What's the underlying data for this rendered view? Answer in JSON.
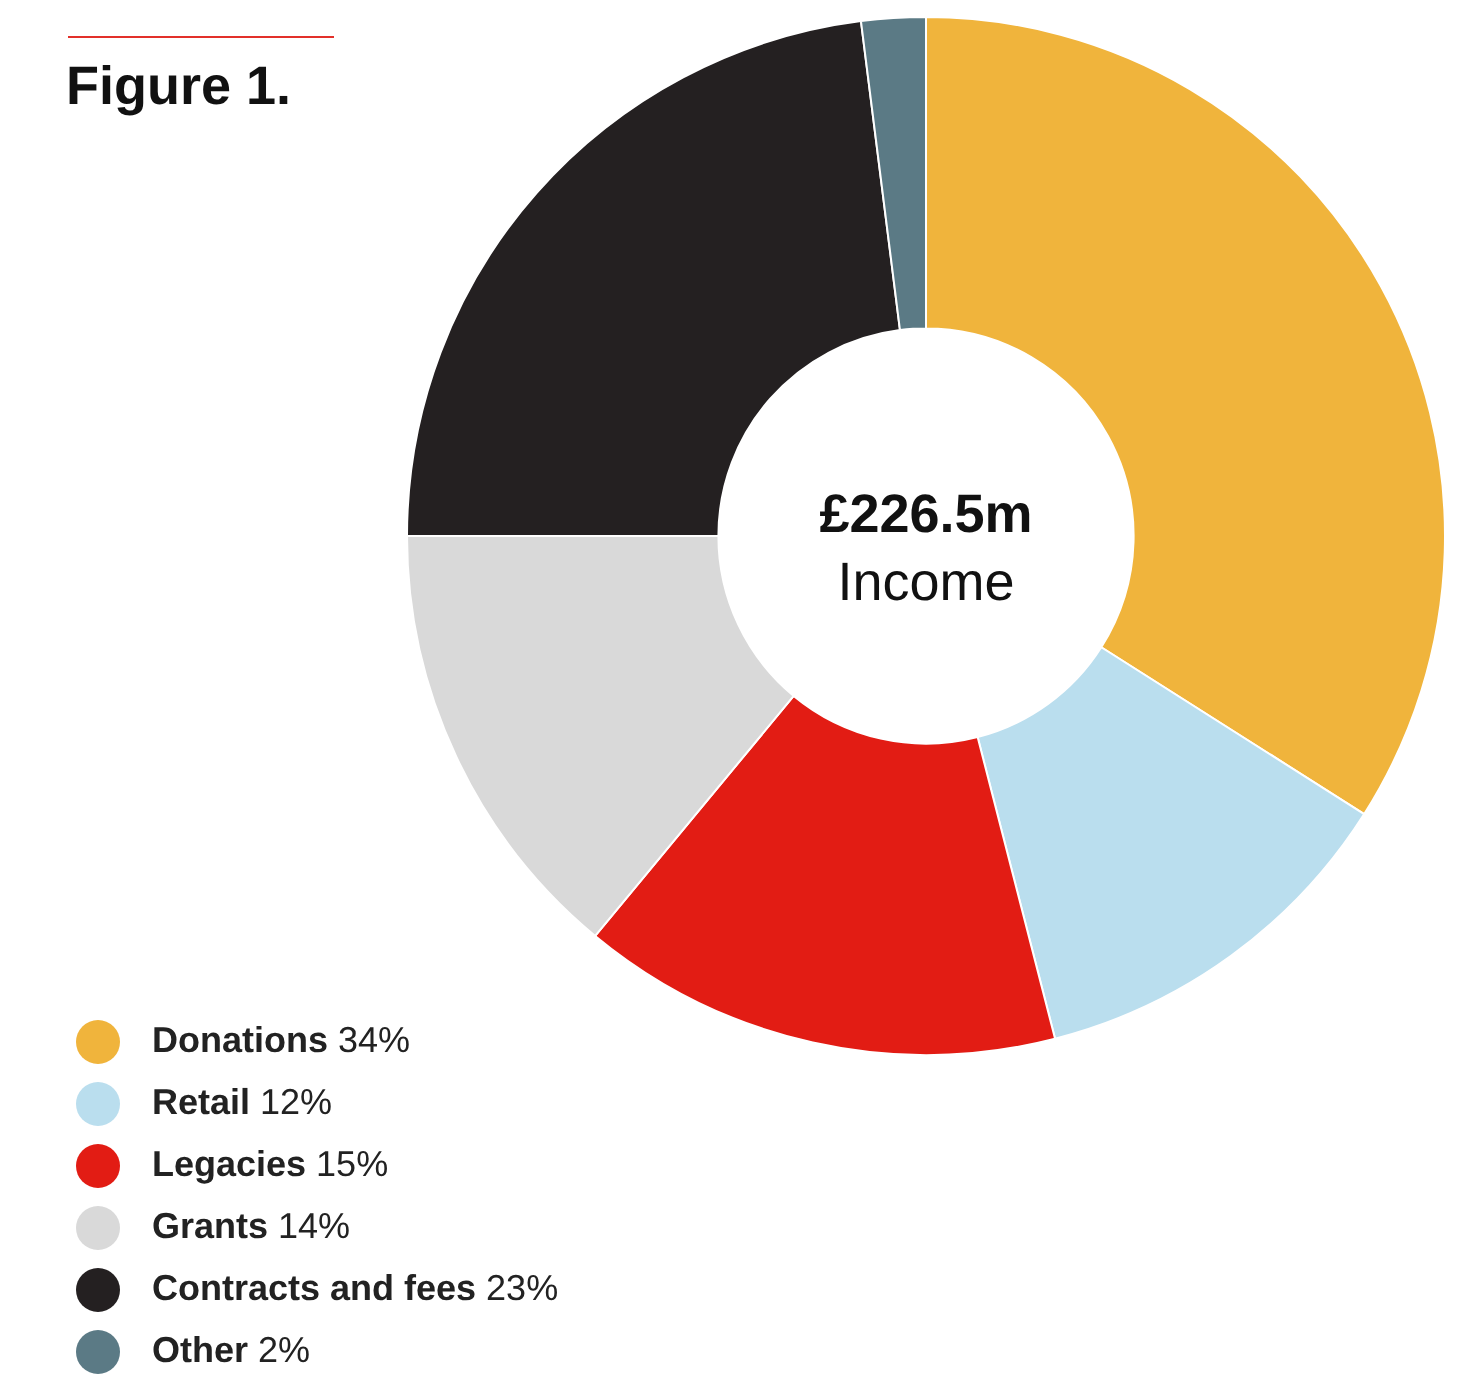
{
  "chart_data": {
    "type": "donut",
    "title": "Figure 1.",
    "categories": [
      "Donations",
      "Retail",
      "Legacies",
      "Grants",
      "Contracts and fees",
      "Other"
    ],
    "values": [
      34,
      12,
      15,
      14,
      23,
      2
    ],
    "value_labels": [
      "34%",
      "12%",
      "15%",
      "14%",
      "23%",
      "2%"
    ],
    "colors": [
      "#f0b43c",
      "#badeee",
      "#e21c14",
      "#d9d9d9",
      "#242021",
      "#5b7a85"
    ],
    "annotations": [
      "£226.5m",
      "Income"
    ],
    "legend": "bottom left"
  }
}
